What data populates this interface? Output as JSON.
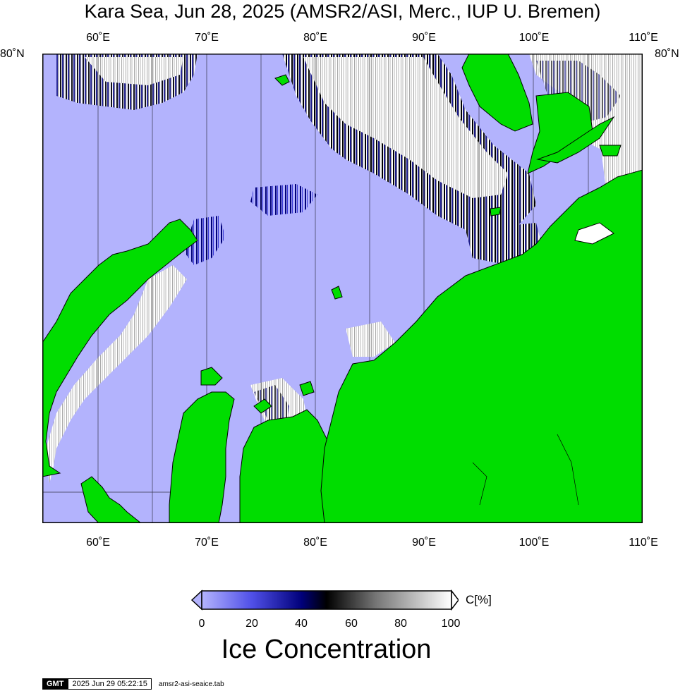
{
  "title": "Kara Sea, Jun 28, 2025 (AMSR2/ASI, Merc., IUP U. Bremen)",
  "map": {
    "lon_labels": [
      "60˚E",
      "70˚E",
      "80˚E",
      "90˚E",
      "100˚E",
      "110˚E"
    ],
    "lat_label_left": "80˚N",
    "lat_label_right": "80˚N",
    "colors": {
      "ocean": "#b3b3fd",
      "land": "#00dd00",
      "ice_high": "#ffffff",
      "ice_mid": "#000000",
      "ice_low": "#00008b",
      "coast": "#000000"
    }
  },
  "colorbar": {
    "ticks": [
      "0",
      "20",
      "40",
      "60",
      "80",
      "100"
    ],
    "unit": "C[%]",
    "title": "Ice Concentration",
    "gradient": [
      "#b3b3fd",
      "#5050e8",
      "#00007a",
      "#000000",
      "#777777",
      "#ffffff"
    ]
  },
  "footer": {
    "logo": "GMT",
    "timestamp": "2025 Jun 29 05:22:15",
    "file": "amsr2-asi-seaice.tab"
  }
}
